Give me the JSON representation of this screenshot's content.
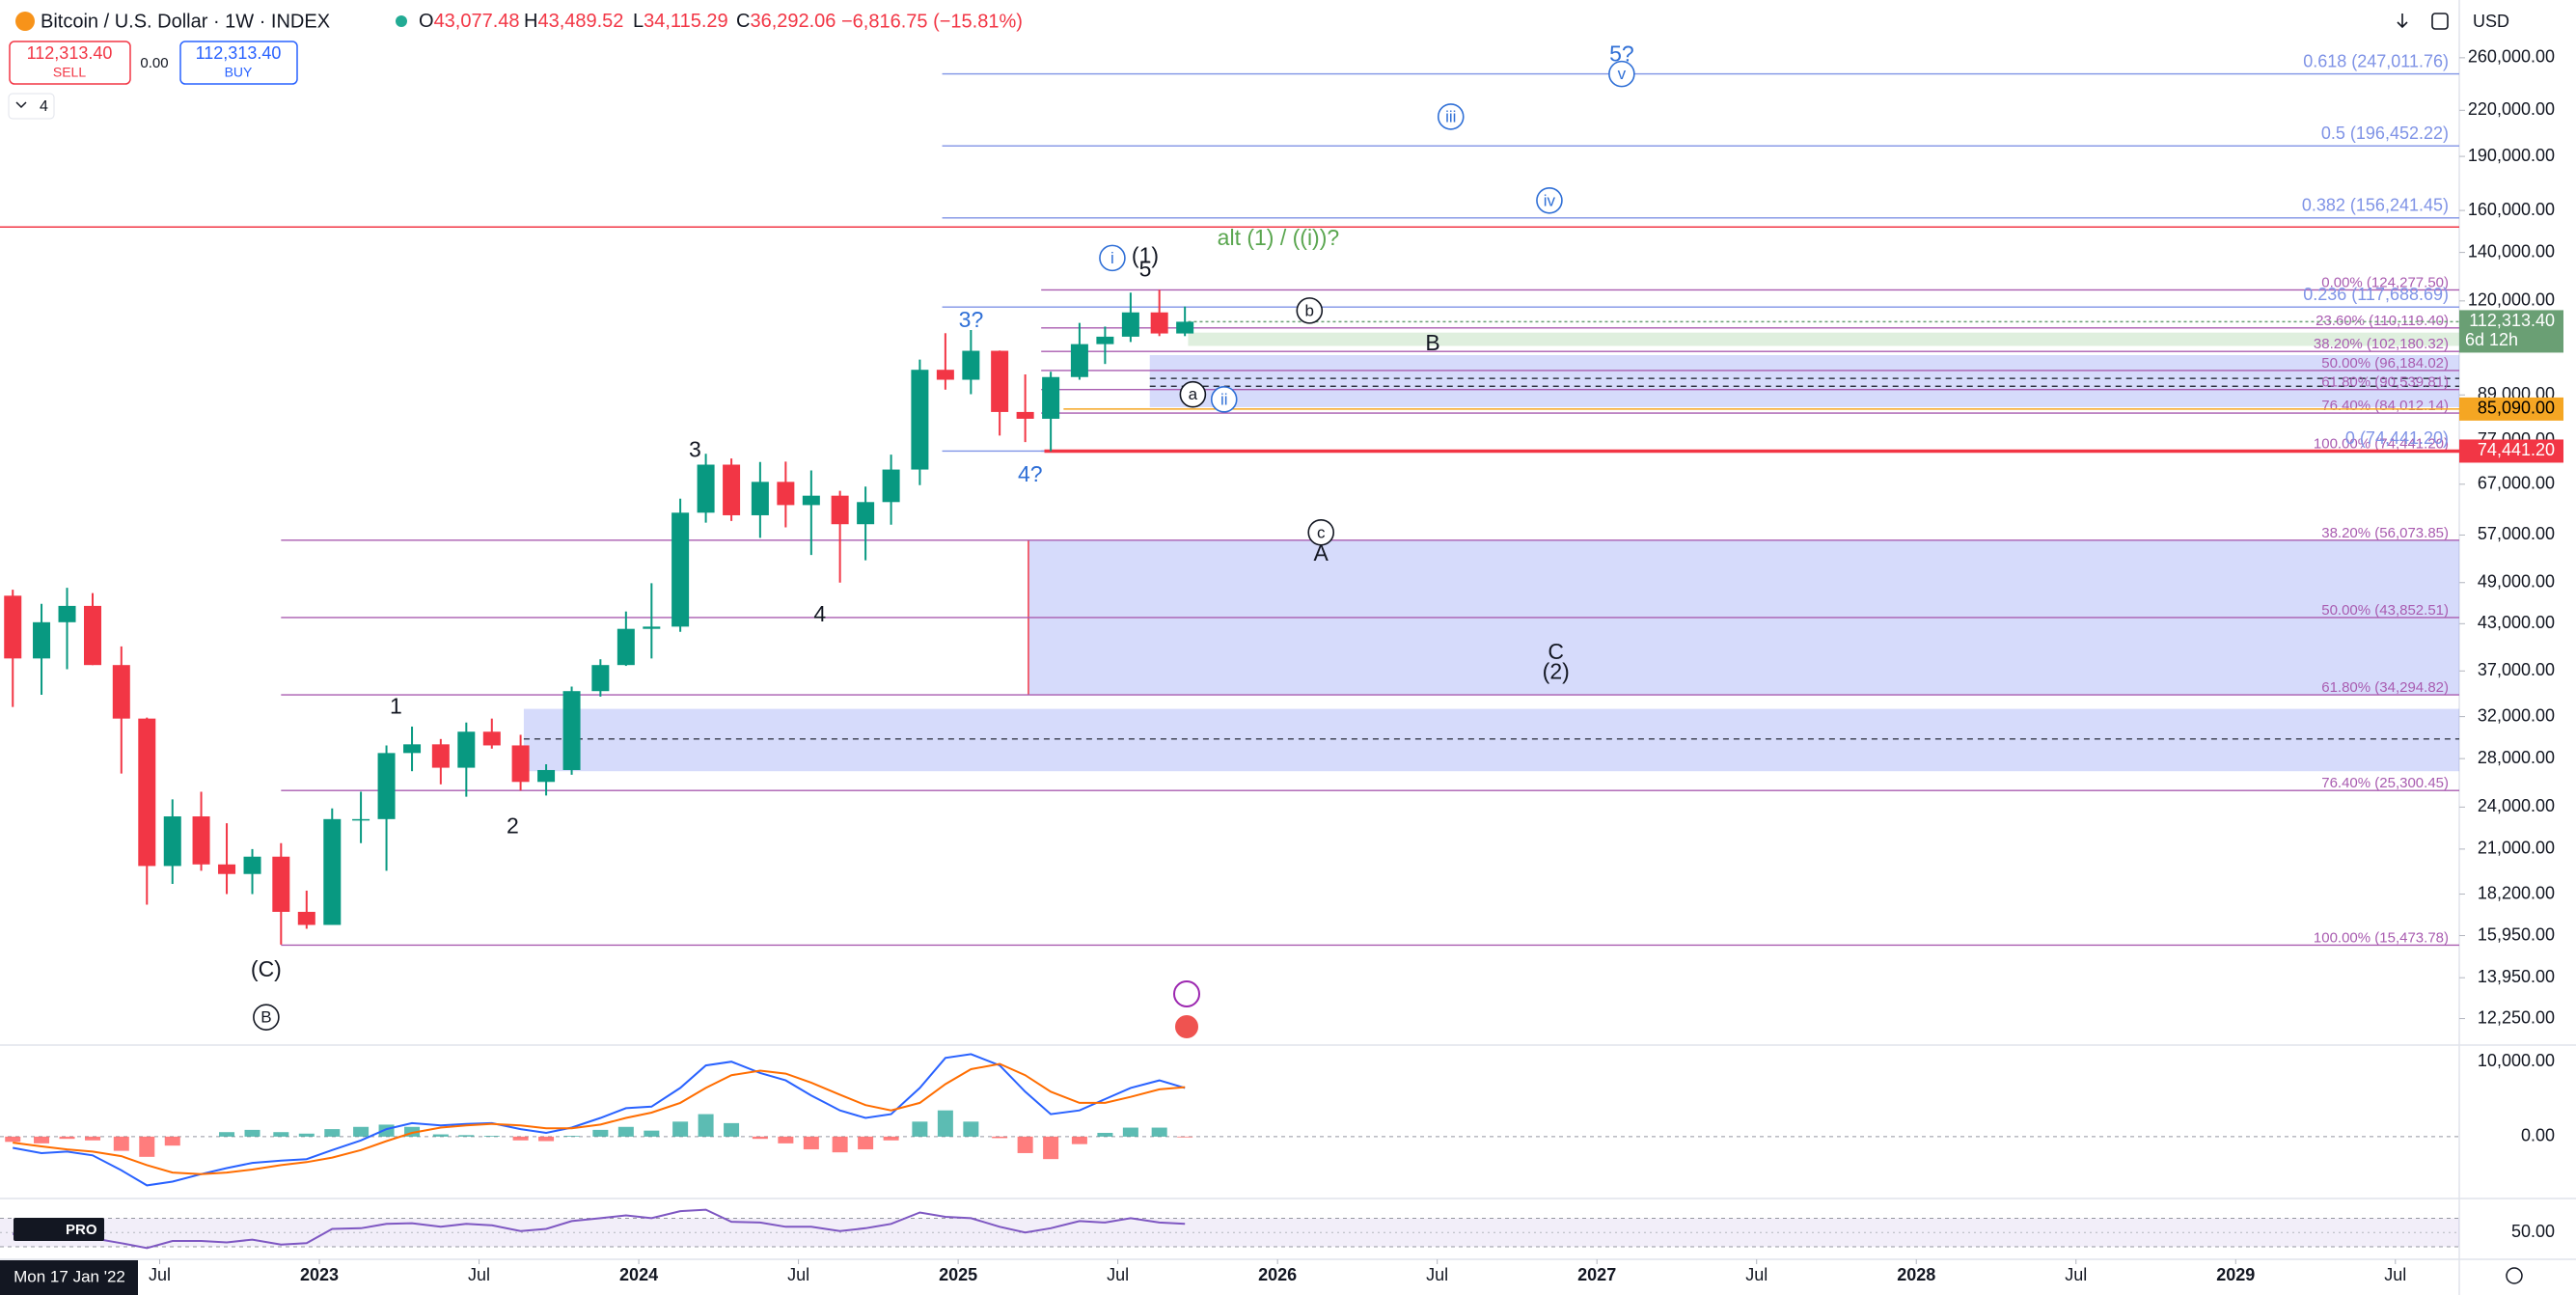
{
  "header": {
    "symbol": "Bitcoin / U.S. Dollar · 1W · INDEX",
    "ohlc": [
      {
        "label": "O",
        "value": "43,077.48"
      },
      {
        "label": "H",
        "value": "43,489.52"
      },
      {
        "label": "L",
        "value": "34,115.29"
      },
      {
        "label": "C",
        "value": "36,292.06"
      }
    ],
    "change": "−6,816.75 (−15.81%)",
    "sell_price": "112,313.40",
    "sell": "SELL",
    "spread": "0.00",
    "buy_price": "112,313.40",
    "buy": "BUY",
    "indicator_count": "4",
    "currency": "USD",
    "crosshair_date": "Mon 17 Jan '22",
    "logo": "PRO"
  },
  "chart_data": [
    {
      "type": "candlestick",
      "log_scale": true,
      "up_color": "#089981",
      "down_color": "#f23645",
      "x": [
        2022.04,
        2022.13,
        2022.21,
        2022.29,
        2022.38,
        2022.46,
        2022.54,
        2022.63,
        2022.71,
        2022.79,
        2022.88,
        2022.96,
        2023.04,
        2023.13,
        2023.21,
        2023.29,
        2023.38,
        2023.46,
        2023.54,
        2023.63,
        2023.71,
        2023.79,
        2023.88,
        2023.96,
        2024.04,
        2024.13,
        2024.21,
        2024.29,
        2024.38,
        2024.46,
        2024.54,
        2024.63,
        2024.71,
        2024.79,
        2024.88,
        2024.96,
        2025.04,
        2025.13,
        2025.21,
        2025.29,
        2025.38,
        2025.46,
        2025.54,
        2025.63,
        2025.71
      ],
      "open": [
        47000,
        38500,
        43200,
        45500,
        37700,
        31800,
        19900,
        23300,
        20000,
        19400,
        20500,
        17200,
        16500,
        23100,
        23100,
        28500,
        29300,
        27200,
        30500,
        29200,
        26000,
        27000,
        34700,
        37700,
        42300,
        42600,
        61200,
        71300,
        60700,
        67500,
        62700,
        64600,
        59000,
        63300,
        70200,
        96400,
        93400,
        102400,
        84300,
        82500,
        94200,
        104600,
        107100,
        115700,
        108200
      ],
      "high": [
        47900,
        45800,
        48200,
        47400,
        40000,
        31900,
        24600,
        25200,
        22800,
        21000,
        21400,
        18400,
        23900,
        25200,
        29200,
        31000,
        29800,
        31400,
        31800,
        30200,
        27500,
        35200,
        38400,
        44700,
        48900,
        64000,
        73800,
        72700,
        71900,
        72000,
        70000,
        65600,
        66500,
        73600,
        99600,
        108300,
        109400,
        102500,
        95000,
        95800,
        111900,
        110600,
        123200,
        124300,
        117900
      ],
      "low": [
        33000,
        34300,
        37200,
        37700,
        26700,
        17600,
        18800,
        19600,
        18200,
        18200,
        15500,
        16300,
        16500,
        21400,
        19600,
        26900,
        25800,
        24800,
        28900,
        25300,
        24900,
        26600,
        34100,
        37600,
        38500,
        41900,
        59300,
        59600,
        56500,
        58400,
        53500,
        49000,
        52600,
        58900,
        66800,
        90500,
        89200,
        78200,
        76600,
        74400,
        93400,
        98200,
        105300,
        107300,
        107300
      ],
      "close": [
        38500,
        43200,
        45500,
        37700,
        31800,
        19900,
        23300,
        20000,
        19400,
        20500,
        17200,
        16500,
        23100,
        23100,
        28500,
        29300,
        27200,
        30500,
        29200,
        26000,
        27000,
        34700,
        37700,
        42300,
        42600,
        61200,
        71300,
        60700,
        67500,
        62700,
        64600,
        59000,
        63300,
        70200,
        96400,
        93400,
        102400,
        84300,
        82500,
        94200,
        104600,
        107100,
        115700,
        108200,
        112313.4
      ],
      "xlim": [
        2022.0,
        2029.7
      ],
      "ylim": [
        11330,
        273800
      ],
      "xticks": [
        {
          "value": 2022.5,
          "label": "Jul"
        },
        2023,
        {
          "value": 2023.5,
          "label": "Jul"
        },
        2024,
        {
          "value": 2024.5,
          "label": "Jul"
        },
        2025,
        {
          "value": 2025.5,
          "label": "Jul"
        },
        2026,
        {
          "value": 2026.5,
          "label": "Jul"
        },
        2027,
        {
          "value": 2027.5,
          "label": "Jul"
        },
        2028,
        {
          "value": 2028.5,
          "label": "Jul"
        },
        2029,
        {
          "value": 2029.5,
          "label": "Jul"
        }
      ],
      "yticks": [
        {
          "value": 260000,
          "label": "260,000.00"
        },
        {
          "value": 220000,
          "label": "220,000.00"
        },
        {
          "value": 190000,
          "label": "190,000.00"
        },
        {
          "value": 160000,
          "label": "160,000.00"
        },
        {
          "value": 140000,
          "label": "140,000.00"
        },
        {
          "value": 120000,
          "label": "120,000.00"
        },
        {
          "value": 89000,
          "label": "89,000.00"
        },
        {
          "value": 77000,
          "label": "77,000.00"
        },
        {
          "value": 67000,
          "label": "67,000.00"
        },
        {
          "value": 57000,
          "label": "57,000.00"
        },
        {
          "value": 49000,
          "label": "49,000.00"
        },
        {
          "value": 43000,
          "label": "43,000.00"
        },
        {
          "value": 37000,
          "label": "37,000.00"
        },
        {
          "value": 32000,
          "label": "32,000.00"
        },
        {
          "value": 28000,
          "label": "28,000.00"
        },
        {
          "value": 24000,
          "label": "24,000.00"
        },
        {
          "value": 21000,
          "label": "21,000.00"
        },
        {
          "value": 18200,
          "label": "18,200.00"
        },
        {
          "value": 15950,
          "label": "15,950.00"
        },
        {
          "value": 13950,
          "label": "13,950.00"
        },
        {
          "value": 12250,
          "label": "12,250.00"
        }
      ],
      "price_tags": [
        {
          "value": 112313.4,
          "label": "112,313.40",
          "sub": "6d 12h",
          "color": "#6a9f74",
          "text_color": "#ffffff"
        },
        {
          "value": 85090,
          "label": "85,090.00",
          "color": "#f5a623",
          "text_color": "#000000"
        },
        {
          "value": 74441.2,
          "label": "74,441.20",
          "color": "#f23645",
          "text_color": "#ffffff"
        }
      ],
      "lines": [
        {
          "value": 151800,
          "color": "#f23645"
        },
        {
          "value": 74441.2,
          "color": "#f23645"
        },
        {
          "value": 85090,
          "color": "#f5a623"
        },
        {
          "value": 112313.4,
          "color": "#6a9f74"
        }
      ],
      "zones": [
        {
          "hi": 56073.85,
          "lo": 34294.82,
          "color": "#6b7ff0",
          "dashes": []
        },
        {
          "hi": 32800,
          "lo": 26900,
          "color": "#6b7ff0",
          "dashes": [
            29800
          ]
        },
        {
          "hi": 108500,
          "lo": 104000,
          "color": "#8bc48a",
          "dashes": []
        },
        {
          "hi": 101000,
          "lo": 85600,
          "color": "#6b7ff0",
          "dashes": [
            93800,
            91500
          ]
        }
      ],
      "fib_sets": [
        {
          "color": "#a95cb0",
          "levels": [
            {
              "value": 124277.5,
              "label": "0.00% (124,277.50)"
            },
            {
              "value": 110119.4,
              "label": "23.60% (110,119.40)"
            },
            {
              "value": 102180.32,
              "label": "38.20% (102,180.32)"
            },
            {
              "value": 96184.02,
              "label": "50.00% (96,184.02)"
            },
            {
              "value": 90539.81,
              "label": "61.80% (90,539.81)"
            },
            {
              "value": 84012.14,
              "label": "76.40% (84,012.14)"
            },
            {
              "value": 74441.2,
              "label": "100.00% (74,441.20)"
            }
          ]
        },
        {
          "color": "#7f93e6",
          "levels": [
            {
              "value": 247011.76,
              "label": "0.618 (247,011.76)"
            },
            {
              "value": 196452.22,
              "label": "0.5 (196,452.22)"
            },
            {
              "value": 156241.45,
              "label": "0.382 (156,241.45)"
            },
            {
              "value": 117688.69,
              "label": "0.236 (117,688.69)"
            },
            {
              "value": 74441.2,
              "label": "0 (74,441.20)"
            }
          ]
        },
        {
          "color": "#a95cb0",
          "levels": [
            {
              "value": 56073.85,
              "label": "38.20% (56,073.85)"
            },
            {
              "value": 43852.51,
              "label": "50.00% (43,852.51)"
            },
            {
              "value": 34294.82,
              "label": "61.80% (34,294.82)"
            },
            {
              "value": 25300.45,
              "label": "76.40% (25,300.45)"
            },
            {
              "value": 15473.78,
              "label": "100.00% (15,473.78)"
            }
          ]
        }
      ],
      "annotations": [
        {
          "text": "3?",
          "color": "#2f6fd6",
          "circled": false
        },
        {
          "text": "4?",
          "color": "#2f6fd6",
          "circled": false
        },
        {
          "text": "1",
          "color": "#131722",
          "circled": false
        },
        {
          "text": "2",
          "color": "#131722",
          "circled": false
        },
        {
          "text": "3",
          "color": "#131722",
          "circled": false
        },
        {
          "text": "4",
          "color": "#131722",
          "circled": false
        },
        {
          "text": "(C)",
          "color": "#131722",
          "circled": false
        },
        {
          "text": "B",
          "color": "#131722",
          "circled": true
        },
        {
          "text": "(1)",
          "color": "#131722",
          "circled": false
        },
        {
          "text": "5",
          "color": "#131722",
          "circled": false
        },
        {
          "text": "i",
          "color": "#2f6fd6",
          "circled": true
        },
        {
          "text": "alt (1) / ((i))?",
          "color": "#5aa64f",
          "circled": false
        },
        {
          "text": "b",
          "color": "#131722",
          "circled": true
        },
        {
          "text": "B",
          "color": "#131722",
          "circled": false
        },
        {
          "text": "a",
          "color": "#131722",
          "circled": true
        },
        {
          "text": "ii",
          "color": "#2f6fd6",
          "circled": true
        },
        {
          "text": "c",
          "color": "#131722",
          "circled": true
        },
        {
          "text": "A",
          "color": "#131722",
          "circled": false
        },
        {
          "text": "C",
          "color": "#131722",
          "circled": false
        },
        {
          "text": "(2)",
          "color": "#131722",
          "circled": false
        },
        {
          "text": "5?",
          "color": "#2f6fd6",
          "circled": false
        },
        {
          "text": "v",
          "color": "#2f6fd6",
          "circled": true
        },
        {
          "text": "iii",
          "color": "#2f6fd6",
          "circled": true
        },
        {
          "text": "iv",
          "color": "#2f6fd6",
          "circled": true
        }
      ]
    },
    {
      "type": "macd",
      "x": [
        2022.04,
        2022.13,
        2022.21,
        2022.29,
        2022.38,
        2022.46,
        2022.54,
        2022.63,
        2022.71,
        2022.79,
        2022.88,
        2022.96,
        2023.04,
        2023.13,
        2023.21,
        2023.29,
        2023.38,
        2023.46,
        2023.54,
        2023.63,
        2023.71,
        2023.79,
        2023.88,
        2023.96,
        2024.04,
        2024.13,
        2024.21,
        2024.29,
        2024.38,
        2024.46,
        2024.54,
        2024.63,
        2024.71,
        2024.79,
        2024.88,
        2024.96,
        2025.04,
        2025.13,
        2025.21,
        2025.29,
        2025.38,
        2025.46,
        2025.54,
        2025.63,
        2025.71
      ],
      "macd": {
        "color": "#2962ff",
        "values": [
          -1500,
          -2200,
          -2000,
          -2500,
          -4500,
          -6500,
          -6000,
          -5000,
          -4200,
          -3500,
          -3200,
          -3000,
          -1800,
          -500,
          1000,
          1800,
          1500,
          1700,
          1800,
          1000,
          500,
          1200,
          2500,
          3800,
          4000,
          6500,
          9500,
          10000,
          8500,
          7500,
          5500,
          3500,
          2500,
          3000,
          6500,
          10500,
          11000,
          9500,
          6000,
          3000,
          3500,
          5000,
          6500,
          7500,
          6500
        ]
      },
      "signal": {
        "color": "#ff6d00",
        "values": [
          -800,
          -1300,
          -1700,
          -2000,
          -2600,
          -3800,
          -4800,
          -5000,
          -4800,
          -4400,
          -3800,
          -3400,
          -2800,
          -1800,
          -600,
          500,
          1200,
          1500,
          1700,
          1500,
          1100,
          1100,
          1600,
          2500,
          3200,
          4500,
          6500,
          8200,
          8800,
          8400,
          7200,
          5600,
          4200,
          3500,
          4500,
          7000,
          9000,
          9700,
          8200,
          6000,
          4500,
          4500,
          5300,
          6300,
          6600
        ]
      },
      "histogram": {
        "up_color": "#26a69a",
        "down_color": "#ff5252",
        "values": [
          -700,
          -900,
          -300,
          -500,
          -1900,
          -2700,
          -1200,
          0,
          600,
          900,
          600,
          400,
          1000,
          1300,
          1600,
          1300,
          300,
          200,
          100,
          -500,
          -600,
          100,
          900,
          1300,
          800,
          2000,
          3000,
          1800,
          -300,
          -900,
          -1700,
          -2100,
          -1700,
          -500,
          2000,
          3500,
          2000,
          -200,
          -2200,
          -3000,
          -1000,
          500,
          1200,
          1200,
          -100
        ]
      },
      "xlim": [
        2022.0,
        2029.7
      ],
      "ylim": [
        -8000,
        11700
      ],
      "yticks": [
        {
          "value": 10000,
          "label": "10,000.00"
        },
        {
          "value": 0,
          "label": "0.00"
        }
      ]
    },
    {
      "type": "rsi",
      "x": [
        2022.04,
        2022.13,
        2022.21,
        2022.29,
        2022.38,
        2022.46,
        2022.54,
        2022.63,
        2022.71,
        2022.79,
        2022.88,
        2022.96,
        2023.04,
        2023.13,
        2023.21,
        2023.29,
        2023.38,
        2023.46,
        2023.54,
        2023.63,
        2023.71,
        2023.79,
        2023.88,
        2023.96,
        2024.04,
        2024.13,
        2024.21,
        2024.29,
        2024.38,
        2024.46,
        2024.54,
        2024.63,
        2024.71,
        2024.79,
        2024.88,
        2024.96,
        2025.04,
        2025.13,
        2025.21,
        2025.29,
        2025.38,
        2025.46,
        2025.54,
        2025.63,
        2025.71
      ],
      "values": [
        48,
        45,
        50,
        42,
        35,
        28,
        38,
        38,
        36,
        40,
        33,
        35,
        55,
        56,
        62,
        63,
        58,
        62,
        60,
        52,
        55,
        66,
        70,
        74,
        70,
        80,
        82,
        65,
        64,
        58,
        58,
        52,
        56,
        62,
        78,
        72,
        70,
        58,
        50,
        56,
        66,
        64,
        70,
        64,
        62
      ],
      "color": "#7e57c2",
      "band": [
        30,
        70
      ],
      "xlim": [
        2022.0,
        2029.7
      ],
      "ylim": [
        15,
        95
      ],
      "yticks": [
        {
          "value": 50,
          "label": "50.00"
        }
      ]
    }
  ]
}
